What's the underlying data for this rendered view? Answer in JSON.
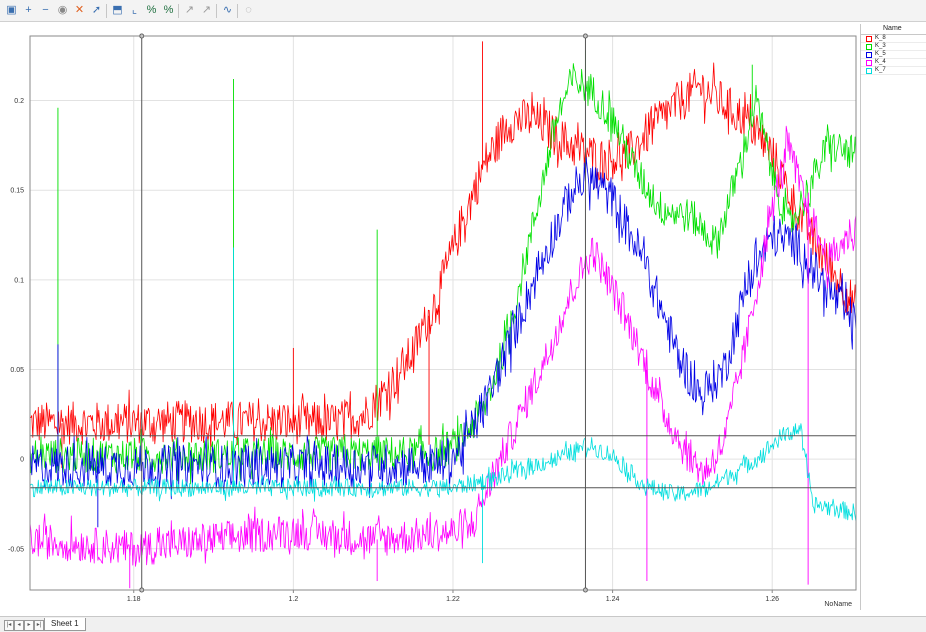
{
  "toolbar": {
    "icons": [
      "chart-options-icon",
      "zoom-in-icon",
      "zoom-out-icon",
      "reset-icon",
      "delete-icon",
      "pointer-icon",
      "axis-icon",
      "scale-icon",
      "percent-icon",
      "percent-alt-icon",
      "cursor-icon",
      "cursor-alt-icon",
      "spline-icon",
      "hide-icon"
    ]
  },
  "legend": {
    "header": "Name"
  },
  "bottom": {
    "sheet_tab": "Sheet 1"
  },
  "cursor_lines": {
    "vertical": [
      1.181,
      1.2366
    ],
    "horizontal": [
      0.013,
      -0.016
    ]
  },
  "chart_data": {
    "type": "line",
    "title": "",
    "xlabel": "NoName",
    "ylabel": "",
    "xlim": [
      1.167,
      1.2705
    ],
    "ylim": [
      -0.073,
      0.236
    ],
    "xticks": [
      1.18,
      1.2,
      1.22,
      1.24,
      1.26
    ],
    "xtick_labels": [
      "1.18",
      "1.2",
      "1.22",
      "1.24",
      "1.26"
    ],
    "yticks": [
      -0.05,
      0,
      0.05,
      0.1,
      0.15,
      0.2
    ],
    "ytick_labels": [
      "-0.05",
      "0",
      "0.05",
      "0.1",
      "0.15",
      "0.2"
    ],
    "grid": true,
    "legend_position": "right panel",
    "series": [
      {
        "name": "K_8",
        "color": "#ff0000",
        "noise": 0.012,
        "x": [
          1.167,
          1.175,
          1.19,
          1.205,
          1.209,
          1.212,
          1.215,
          1.218,
          1.221,
          1.224,
          1.227,
          1.23,
          1.233,
          1.236,
          1.239,
          1.242,
          1.245,
          1.248,
          1.251,
          1.254,
          1.257,
          1.26,
          1.263,
          1.266,
          1.2705
        ],
        "y": [
          0.02,
          0.02,
          0.021,
          0.02,
          0.025,
          0.04,
          0.06,
          0.09,
          0.13,
          0.165,
          0.188,
          0.19,
          0.18,
          0.172,
          0.167,
          0.17,
          0.185,
          0.198,
          0.208,
          0.198,
          0.188,
          0.17,
          0.14,
          0.115,
          0.085
        ],
        "spikes": [
          [
            1.171,
            -0.005
          ],
          [
            1.2,
            0.062
          ],
          [
            1.217,
            0.008
          ],
          [
            1.2237,
            0.233
          ]
        ]
      },
      {
        "name": "K_3",
        "color": "#00e000",
        "noise": 0.01,
        "x": [
          1.167,
          1.19,
          1.21,
          1.218,
          1.221,
          1.224,
          1.227,
          1.23,
          1.233,
          1.235,
          1.2375,
          1.24,
          1.243,
          1.246,
          1.25,
          1.253,
          1.256,
          1.258,
          1.26,
          1.262,
          1.264,
          1.267,
          1.2705
        ],
        "y": [
          0.002,
          0.002,
          0.003,
          0.003,
          0.01,
          0.03,
          0.07,
          0.13,
          0.19,
          0.212,
          0.205,
          0.19,
          0.16,
          0.14,
          0.135,
          0.12,
          0.165,
          0.2,
          0.16,
          0.13,
          0.145,
          0.175,
          0.17
        ],
        "spikes": [
          [
            1.1705,
            0.196
          ],
          [
            1.1925,
            0.212
          ],
          [
            1.2105,
            0.128
          ],
          [
            1.2366,
            0.228
          ],
          [
            1.2575,
            0.22
          ]
        ]
      },
      {
        "name": "K_5",
        "color": "#0000e6",
        "noise": 0.012,
        "x": [
          1.167,
          1.2,
          1.218,
          1.221,
          1.224,
          1.228,
          1.232,
          1.235,
          1.237,
          1.24,
          1.244,
          1.248,
          1.251,
          1.254,
          1.257,
          1.26,
          1.263,
          1.266,
          1.2705
        ],
        "y": [
          -0.004,
          -0.004,
          -0.003,
          0.005,
          0.03,
          0.075,
          0.12,
          0.15,
          0.158,
          0.145,
          0.11,
          0.06,
          0.035,
          0.05,
          0.1,
          0.125,
          0.12,
          0.1,
          0.075
        ],
        "spikes": [
          [
            1.1705,
            0.064
          ],
          [
            1.1755,
            -0.038
          ]
        ]
      },
      {
        "name": "K_4",
        "color": "#ff00ff",
        "noise": 0.01,
        "x": [
          1.167,
          1.18,
          1.19,
          1.2,
          1.21,
          1.222,
          1.225,
          1.228,
          1.232,
          1.235,
          1.2375,
          1.24,
          1.243,
          1.246,
          1.249,
          1.2515,
          1.254,
          1.257,
          1.26,
          1.262,
          1.264,
          1.267,
          1.2705
        ],
        "y": [
          -0.045,
          -0.05,
          -0.045,
          -0.04,
          -0.045,
          -0.04,
          -0.01,
          0.02,
          0.06,
          0.095,
          0.117,
          0.095,
          0.065,
          0.03,
          0.005,
          -0.008,
          0.01,
          0.07,
          0.14,
          0.175,
          0.145,
          0.11,
          0.13
        ],
        "spikes": [
          [
            1.1795,
            -0.072
          ],
          [
            1.2105,
            -0.068
          ],
          [
            1.2443,
            -0.068
          ],
          [
            1.2645,
            -0.07
          ]
        ]
      },
      {
        "name": "K_7",
        "color": "#00dede",
        "noise": 0.005,
        "x": [
          1.167,
          1.2,
          1.22,
          1.226,
          1.23,
          1.234,
          1.237,
          1.24,
          1.244,
          1.248,
          1.252,
          1.255,
          1.258,
          1.261,
          1.2635,
          1.265,
          1.2705
        ],
        "y": [
          -0.016,
          -0.016,
          -0.016,
          -0.01,
          -0.004,
          0.002,
          0.008,
          0.002,
          -0.015,
          -0.02,
          -0.016,
          -0.008,
          0,
          0.012,
          0.018,
          -0.025,
          -0.03
        ],
        "spikes": [
          [
            1.1925,
            0.118
          ],
          [
            1.2237,
            -0.058
          ]
        ]
      }
    ]
  }
}
